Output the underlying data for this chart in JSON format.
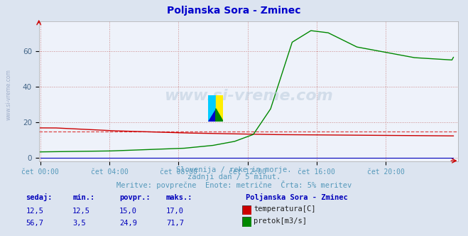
{
  "title": "Poljanska Sora - Zminec",
  "title_color": "#0000cc",
  "bg_color": "#dce4f0",
  "plot_bg_color": "#eef2fa",
  "grid_color": "#cc8888",
  "x_label_color": "#5599bb",
  "y_label_color": "#446688",
  "watermark_text": "www.si-vreme.com",
  "subtitle1": "Slovenija / reke in morje.",
  "subtitle2": "zadnji dan / 5 minut.",
  "subtitle3": "Meritve: povprečne  Enote: metrične  Črta: 5% meritev",
  "subtitle_color": "#5599bb",
  "x_ticks": [
    "čet 00:00",
    "čet 04:00",
    "čet 08:00",
    "čet 12:00",
    "čet 16:00",
    "čet 20:00"
  ],
  "x_tick_positions": [
    0,
    48,
    96,
    144,
    192,
    240
  ],
  "y_ticks": [
    0,
    20,
    40,
    60
  ],
  "ylim": [
    -2,
    77
  ],
  "xlim": [
    -1,
    290
  ],
  "temp_color": "#cc0000",
  "temp_avg_color": "#dd4444",
  "flow_color": "#008800",
  "height_color": "#0000bb",
  "legend_title": "Poljanska Sora - Zminec",
  "legend_color": "#0000bb",
  "stats_headers": [
    "sedaj:",
    "min.:",
    "povpr.:",
    "maks.:"
  ],
  "stats_temp": [
    "12,5",
    "12,5",
    "15,0",
    "17,0"
  ],
  "stats_flow": [
    "56,7",
    "3,5",
    "24,9",
    "71,7"
  ],
  "stats_color": "#0000bb",
  "temp_avg_value": 15.0
}
